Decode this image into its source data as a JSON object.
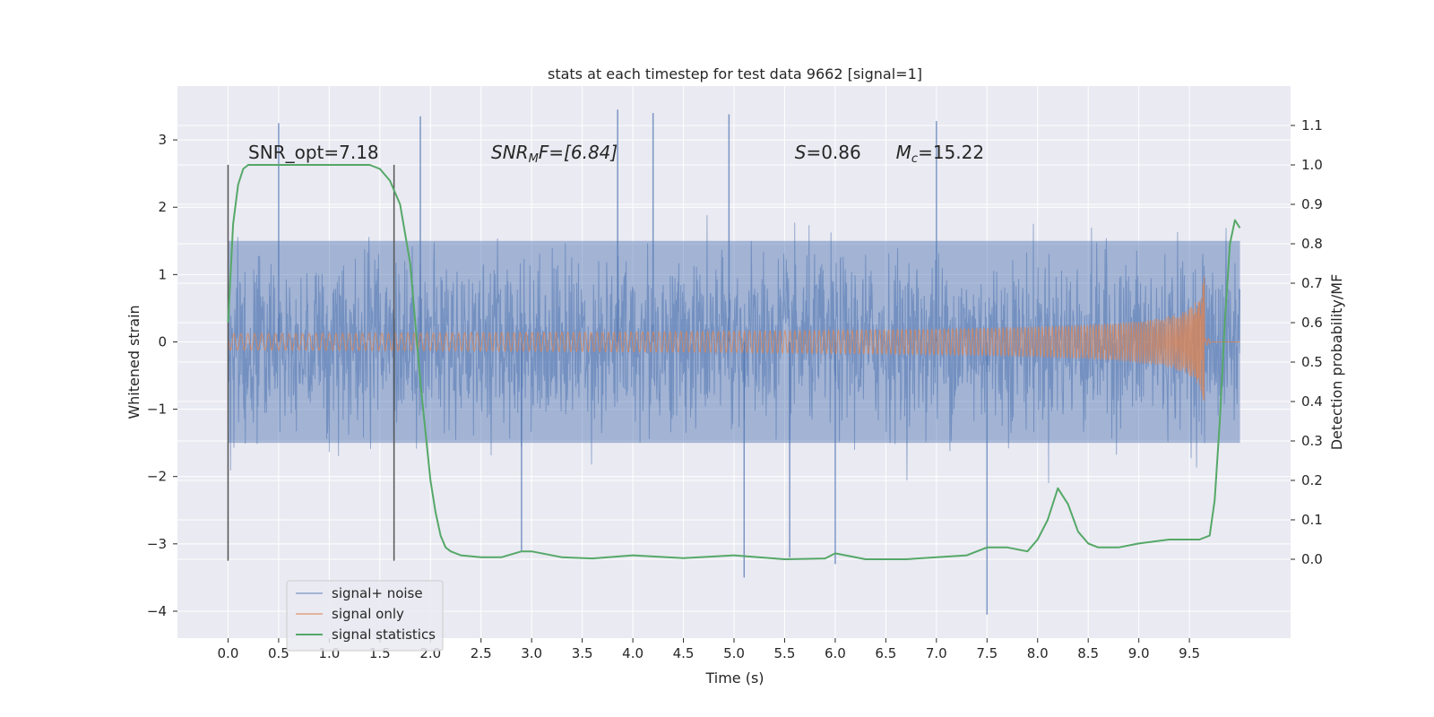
{
  "chart_data": {
    "type": "line",
    "title": "stats at each timestep for test data 9662 [signal=1]",
    "xlabel": "Time (s)",
    "ylabel": "Whitened strain",
    "y2label": "Detection probability/MF",
    "xlim": [
      -0.5,
      10.5
    ],
    "ylim": [
      -4.4,
      3.8
    ],
    "y2lim": [
      -0.2,
      1.2
    ],
    "x_ticks": [
      "0.0",
      "0.5",
      "1.0",
      "1.5",
      "2.0",
      "2.5",
      "3.0",
      "3.5",
      "4.0",
      "4.5",
      "5.0",
      "5.5",
      "6.0",
      "6.5",
      "7.0",
      "7.5",
      "8.0",
      "8.5",
      "9.0",
      "9.5"
    ],
    "x_tick_values": [
      0,
      0.5,
      1,
      1.5,
      2,
      2.5,
      3,
      3.5,
      4,
      4.5,
      5,
      5.5,
      6,
      6.5,
      7,
      7.5,
      8,
      8.5,
      9,
      9.5
    ],
    "y_ticks": [
      "3",
      "2",
      "1",
      "0",
      "−1",
      "−2",
      "−3",
      "−4"
    ],
    "y_tick_values": [
      3,
      2,
      1,
      0,
      -1,
      -2,
      -3,
      -4
    ],
    "y2_ticks": [
      "1.1",
      "1.0",
      "0.9",
      "0.8",
      "0.7",
      "0.6",
      "0.5",
      "0.4",
      "0.3",
      "0.2",
      "0.1",
      "0.0"
    ],
    "y2_tick_values": [
      1.1,
      1.0,
      0.9,
      0.8,
      0.7,
      0.6,
      0.5,
      0.4,
      0.3,
      0.2,
      0.1,
      0.0
    ],
    "grid": true,
    "legend_position": "lower-left",
    "annotations": [
      {
        "text": "SNR_opt=7.18",
        "x": 0.2,
        "y": 2.72
      },
      {
        "text": "SNR",
        "sub": "M",
        "rest": "F=[6.84]",
        "x": 2.6,
        "y": 2.72
      },
      {
        "text": "S",
        "rest": "=0.86",
        "x": 5.6,
        "y": 2.72
      },
      {
        "text": "M",
        "sub": "c",
        "rest": "=15.22",
        "x": 6.6,
        "y": 2.72
      }
    ],
    "vlines": [
      {
        "x": 0.0,
        "ymin": -3.25,
        "ymax": 2.63
      },
      {
        "x": 1.64,
        "ymin": -3.25,
        "ymax": 2.63
      }
    ],
    "series": [
      {
        "name": "signal+ noise",
        "color": "#4c72b0",
        "x_range": [
          0,
          10
        ],
        "envelope_typical": 1.5,
        "peaks": [
          {
            "x": 0.5,
            "y": 3.25
          },
          {
            "x": 1.9,
            "y": 3.35
          },
          {
            "x": 3.85,
            "y": 3.45
          },
          {
            "x": 4.2,
            "y": 3.4
          },
          {
            "x": 4.95,
            "y": 3.38
          },
          {
            "x": 5.1,
            "y": -3.5
          },
          {
            "x": 7.0,
            "y": 3.28
          },
          {
            "x": 7.5,
            "y": -4.05
          },
          {
            "x": 6.0,
            "y": -3.3
          },
          {
            "x": 5.55,
            "y": -3.2
          },
          {
            "x": 2.9,
            "y": -3.1
          }
        ]
      },
      {
        "name": "signal only",
        "color": "#dd8452",
        "chirp_end_x": 9.65,
        "chirp_peak_amplitude": 1.07
      },
      {
        "name": "signal statistics",
        "color": "#55a868",
        "axis": "right",
        "x": [
          0.0,
          0.05,
          0.1,
          0.15,
          0.2,
          0.3,
          0.5,
          1.0,
          1.4,
          1.5,
          1.6,
          1.7,
          1.8,
          1.9,
          2.0,
          2.05,
          2.1,
          2.15,
          2.2,
          2.3,
          2.5,
          2.7,
          2.9,
          3.0,
          3.3,
          3.6,
          4.0,
          4.5,
          5.0,
          5.5,
          5.9,
          6.0,
          6.3,
          6.7,
          7.0,
          7.3,
          7.5,
          7.7,
          7.9,
          8.0,
          8.1,
          8.2,
          8.3,
          8.4,
          8.5,
          8.6,
          8.8,
          9.0,
          9.3,
          9.5,
          9.6,
          9.7,
          9.75,
          9.8,
          9.85,
          9.9,
          9.95,
          10.0
        ],
        "values": [
          0.6,
          0.85,
          0.95,
          0.99,
          1.0,
          1.0,
          1.0,
          1.0,
          1.0,
          0.99,
          0.96,
          0.9,
          0.75,
          0.45,
          0.2,
          0.12,
          0.06,
          0.03,
          0.02,
          0.01,
          0.005,
          0.005,
          0.02,
          0.02,
          0.005,
          0.002,
          0.01,
          0.003,
          0.01,
          0.0,
          0.002,
          0.015,
          0.0,
          0.0,
          0.005,
          0.01,
          0.03,
          0.03,
          0.02,
          0.05,
          0.1,
          0.18,
          0.14,
          0.07,
          0.04,
          0.03,
          0.03,
          0.04,
          0.05,
          0.05,
          0.05,
          0.06,
          0.15,
          0.35,
          0.6,
          0.8,
          0.86,
          0.84
        ]
      }
    ]
  }
}
